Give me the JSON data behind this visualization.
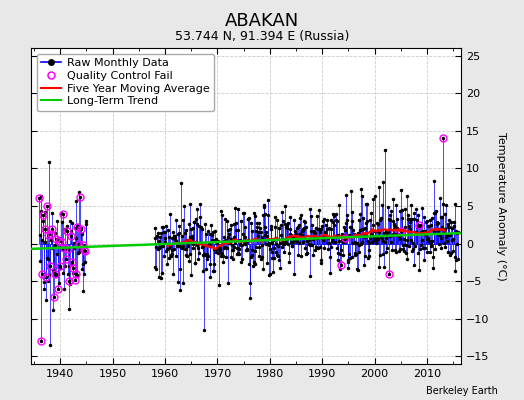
{
  "title": "ABAKAN",
  "subtitle": "53.744 N, 91.394 E (Russia)",
  "ylabel": "Temperature Anomaly (°C)",
  "xlabel_note": "Berkeley Earth",
  "xlim": [
    1934.5,
    2016.5
  ],
  "ylim": [
    -16,
    26
  ],
  "yticks": [
    -15,
    -10,
    -5,
    0,
    5,
    10,
    15,
    20,
    25
  ],
  "xticks": [
    1940,
    1950,
    1960,
    1970,
    1980,
    1990,
    2000,
    2010
  ],
  "plot_bg_color": "#ffffff",
  "fig_bg_color": "#e8e8e8",
  "grid_color": "#cccccc",
  "raw_color": "#0000ff",
  "ma_color": "#ff0000",
  "trend_color": "#00cc00",
  "qc_color": "#ff00ff",
  "seed": 12345,
  "title_fontsize": 13,
  "subtitle_fontsize": 9,
  "ylabel_fontsize": 8,
  "legend_fontsize": 8,
  "tick_fontsize": 8
}
